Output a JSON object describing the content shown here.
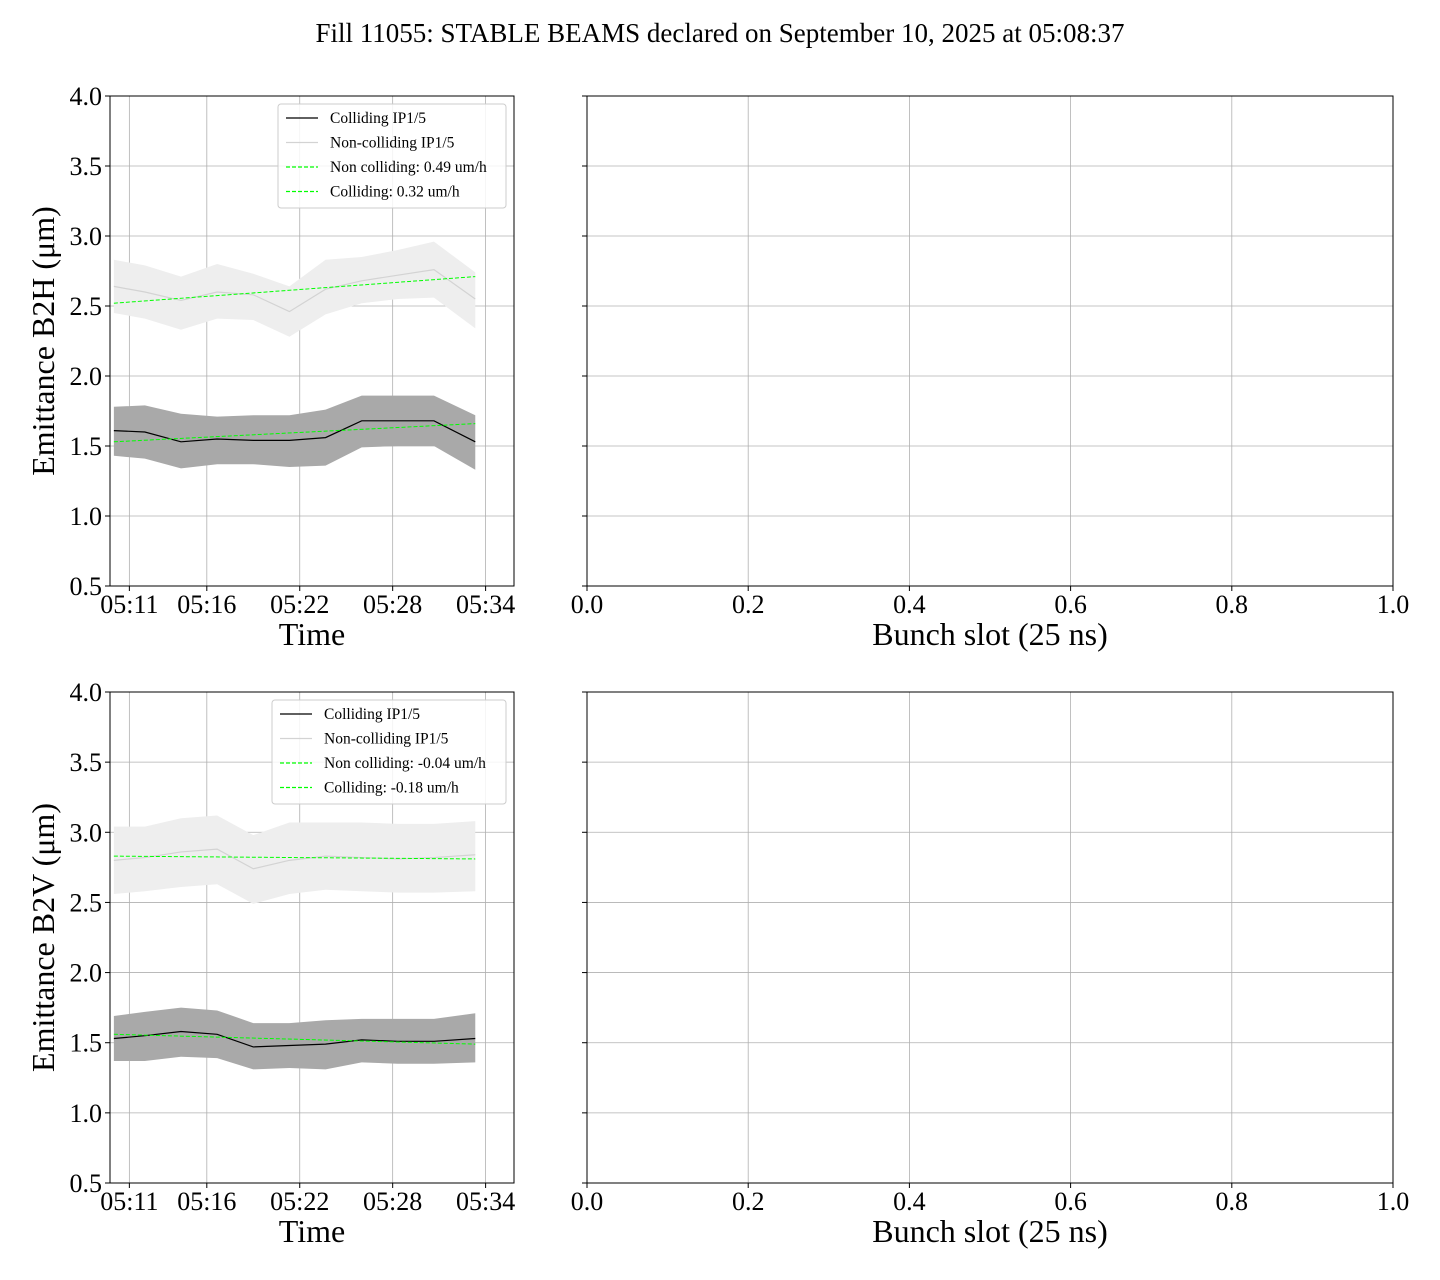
{
  "figure_title": "Fill 11055: STABLE BEAMS declared on September 10, 2025 at 05:08:37",
  "colors": {
    "colliding_line": "#000000",
    "colliding_band": "#a9a9a9",
    "noncolliding_line": "#d3d3d3",
    "noncolliding_band": "#eeeeee",
    "fit_line": "#00ff00",
    "grid": "#b0b0b0"
  },
  "chart_data": [
    {
      "type": "line",
      "id": "b2h-time",
      "xlabel": "Time",
      "ylabel": "Emittance B2H (μm)",
      "ylim": [
        0.5,
        4.0
      ],
      "yticks": [
        "0.5",
        "1.0",
        "1.5",
        "2.0",
        "2.5",
        "3.0",
        "3.5",
        "4.0"
      ],
      "xlim": [
        "05:09:45",
        "05:35:50"
      ],
      "xticks": [
        "05:11",
        "05:16",
        "05:22",
        "05:28",
        "05:34"
      ],
      "grid": true,
      "legend_position": "upper right",
      "x": [
        "05:10:00",
        "05:12:00",
        "05:14:20",
        "05:16:40",
        "05:19:00",
        "05:21:20",
        "05:23:40",
        "05:26:00",
        "05:28:20",
        "05:30:40",
        "05:33:20"
      ],
      "series": [
        {
          "name": "Colliding IP1/5",
          "style": "band-line",
          "values": [
            1.61,
            1.6,
            1.53,
            1.55,
            1.54,
            1.54,
            1.56,
            1.68,
            1.68,
            1.68,
            1.53
          ],
          "band_upper": [
            1.78,
            1.79,
            1.73,
            1.71,
            1.72,
            1.72,
            1.76,
            1.86,
            1.86,
            1.86,
            1.72
          ],
          "band_lower": [
            1.43,
            1.41,
            1.34,
            1.37,
            1.37,
            1.35,
            1.36,
            1.49,
            1.5,
            1.5,
            1.33
          ]
        },
        {
          "name": "Non-colliding IP1/5",
          "style": "band-line",
          "values": [
            2.64,
            2.6,
            2.54,
            2.6,
            2.58,
            2.46,
            2.62,
            2.68,
            2.72,
            2.76,
            2.55
          ],
          "band_upper": [
            2.83,
            2.79,
            2.71,
            2.8,
            2.73,
            2.64,
            2.83,
            2.85,
            2.9,
            2.96,
            2.74
          ],
          "band_lower": [
            2.45,
            2.41,
            2.33,
            2.41,
            2.4,
            2.28,
            2.44,
            2.52,
            2.55,
            2.56,
            2.34
          ]
        },
        {
          "name": "Non colliding: 0.49 um/h",
          "style": "dashed-fit",
          "x": [
            "05:10:00",
            "05:33:20"
          ],
          "values": [
            2.52,
            2.71
          ]
        },
        {
          "name": "Colliding: 0.32 um/h",
          "style": "dashed-fit",
          "x": [
            "05:10:00",
            "05:33:20"
          ],
          "values": [
            1.53,
            1.66
          ]
        }
      ]
    },
    {
      "type": "scatter",
      "id": "b2h-bunch",
      "xlabel": "Bunch slot (25 ns)",
      "ylabel": "",
      "xlim": [
        0.0,
        1.0
      ],
      "xticks": [
        "0.0",
        "0.2",
        "0.4",
        "0.6",
        "0.8",
        "1.0"
      ],
      "ylim": [
        0.5,
        4.0
      ],
      "grid": true,
      "series": []
    },
    {
      "type": "line",
      "id": "b2v-time",
      "xlabel": "Time",
      "ylabel": "Emittance B2V (μm)",
      "ylim": [
        0.5,
        4.0
      ],
      "yticks": [
        "0.5",
        "1.0",
        "1.5",
        "2.0",
        "2.5",
        "3.0",
        "3.5",
        "4.0"
      ],
      "xlim": [
        "05:09:45",
        "05:35:50"
      ],
      "xticks": [
        "05:11",
        "05:16",
        "05:22",
        "05:28",
        "05:34"
      ],
      "grid": true,
      "legend_position": "upper right",
      "x": [
        "05:10:00",
        "05:12:00",
        "05:14:20",
        "05:16:40",
        "05:19:00",
        "05:21:20",
        "05:23:40",
        "05:26:00",
        "05:28:20",
        "05:30:40",
        "05:33:20"
      ],
      "series": [
        {
          "name": "Colliding IP1/5",
          "style": "band-line",
          "values": [
            1.53,
            1.55,
            1.58,
            1.56,
            1.47,
            1.48,
            1.49,
            1.52,
            1.51,
            1.51,
            1.53
          ],
          "band_upper": [
            1.69,
            1.72,
            1.75,
            1.73,
            1.64,
            1.64,
            1.66,
            1.67,
            1.67,
            1.67,
            1.71
          ],
          "band_lower": [
            1.37,
            1.37,
            1.4,
            1.39,
            1.31,
            1.32,
            1.31,
            1.36,
            1.35,
            1.35,
            1.36
          ]
        },
        {
          "name": "Non-colliding IP1/5",
          "style": "band-line",
          "values": [
            2.8,
            2.82,
            2.86,
            2.88,
            2.74,
            2.8,
            2.83,
            2.82,
            2.81,
            2.82,
            2.84
          ],
          "band_upper": [
            3.04,
            3.04,
            3.1,
            3.12,
            2.98,
            3.07,
            3.07,
            3.07,
            3.06,
            3.06,
            3.08
          ],
          "band_lower": [
            2.56,
            2.58,
            2.61,
            2.63,
            2.49,
            2.56,
            2.59,
            2.58,
            2.57,
            2.57,
            2.58
          ]
        },
        {
          "name": "Non colliding: -0.04 um/h",
          "style": "dashed-fit",
          "x": [
            "05:10:00",
            "05:33:20"
          ],
          "values": [
            2.83,
            2.81
          ]
        },
        {
          "name": "Colliding: -0.18 um/h",
          "style": "dashed-fit",
          "x": [
            "05:10:00",
            "05:33:20"
          ],
          "values": [
            1.56,
            1.49
          ]
        }
      ]
    },
    {
      "type": "scatter",
      "id": "b2v-bunch",
      "xlabel": "Bunch slot (25 ns)",
      "ylabel": "",
      "xlim": [
        0.0,
        1.0
      ],
      "xticks": [
        "0.0",
        "0.2",
        "0.4",
        "0.6",
        "0.8",
        "1.0"
      ],
      "ylim": [
        0.5,
        4.0
      ],
      "grid": true,
      "series": []
    }
  ]
}
